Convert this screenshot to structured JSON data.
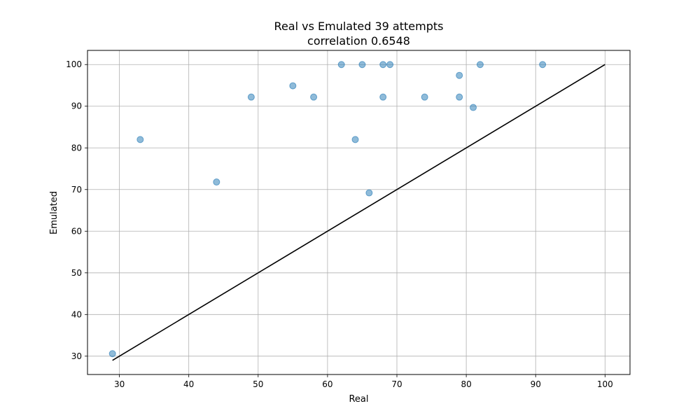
{
  "chart_data": {
    "type": "scatter",
    "title": "Real vs Emulated 39 attempts",
    "subtitle": "correlation 0.6548",
    "xlabel": "Real",
    "ylabel": "Emulated",
    "xlim": [
      25.4,
      103.6
    ],
    "ylim": [
      25.6,
      103.4
    ],
    "xticks": [
      30,
      40,
      50,
      60,
      70,
      80,
      90,
      100
    ],
    "yticks": [
      30,
      40,
      50,
      60,
      70,
      80,
      90,
      100
    ],
    "grid": true,
    "point_color": "#1f77b4",
    "line_color": "#000000",
    "reference_line": {
      "x": [
        29,
        100
      ],
      "y": [
        29,
        100
      ]
    },
    "points": [
      {
        "x": 29,
        "y": 30.6
      },
      {
        "x": 33,
        "y": 82.0
      },
      {
        "x": 44,
        "y": 71.8
      },
      {
        "x": 49,
        "y": 92.2
      },
      {
        "x": 55,
        "y": 94.9
      },
      {
        "x": 58,
        "y": 92.2
      },
      {
        "x": 62,
        "y": 100
      },
      {
        "x": 64,
        "y": 82.0
      },
      {
        "x": 65,
        "y": 100
      },
      {
        "x": 66,
        "y": 69.2
      },
      {
        "x": 68,
        "y": 100
      },
      {
        "x": 68,
        "y": 92.2
      },
      {
        "x": 69,
        "y": 100
      },
      {
        "x": 74,
        "y": 92.2
      },
      {
        "x": 79,
        "y": 97.4
      },
      {
        "x": 79,
        "y": 92.2
      },
      {
        "x": 81,
        "y": 89.7
      },
      {
        "x": 82,
        "y": 100
      },
      {
        "x": 91,
        "y": 100
      }
    ]
  }
}
